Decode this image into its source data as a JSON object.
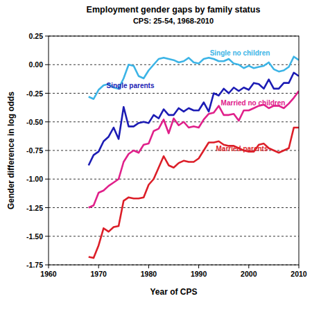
{
  "chart_data": {
    "type": "line",
    "title": "Employment gender gaps by family status",
    "subtitle": "CPS: 25-54, 1968-2010",
    "x_label": "Year of CPS",
    "y_label": "Gender difference in log odds",
    "x": [
      1968,
      1969,
      1970,
      1971,
      1972,
      1973,
      1974,
      1975,
      1976,
      1977,
      1978,
      1979,
      1980,
      1981,
      1982,
      1983,
      1984,
      1985,
      1986,
      1987,
      1988,
      1989,
      1990,
      1991,
      1992,
      1993,
      1994,
      1995,
      1996,
      1997,
      1998,
      1999,
      2000,
      2001,
      2002,
      2003,
      2004,
      2005,
      2006,
      2007,
      2008,
      2009,
      2010
    ],
    "series": [
      {
        "name": "Single no children",
        "color": "#3cb4e6",
        "values": [
          -0.28,
          -0.3,
          -0.22,
          -0.18,
          -0.17,
          -0.2,
          -0.21,
          -0.12,
          0.0,
          -0.01,
          -0.1,
          -0.12,
          -0.05,
          0.0,
          0.05,
          0.06,
          0.05,
          0.04,
          0.02,
          0.03,
          0.06,
          0.02,
          0.01,
          0.05,
          0.06,
          0.05,
          0.03,
          0.03,
          0.05,
          0.01,
          0.0,
          -0.03,
          -0.01,
          -0.03,
          -0.02,
          -0.01,
          0.02,
          -0.04,
          -0.06,
          -0.05,
          -0.02,
          0.07,
          0.04
        ]
      },
      {
        "name": "Single parents",
        "color": "#1c1cb4",
        "values": [
          -0.88,
          -0.79,
          -0.76,
          -0.67,
          -0.63,
          -0.55,
          -0.65,
          -0.37,
          -0.54,
          -0.54,
          -0.51,
          -0.5,
          -0.51,
          -0.44,
          -0.47,
          -0.39,
          -0.44,
          -0.44,
          -0.38,
          -0.41,
          -0.38,
          -0.4,
          -0.4,
          -0.33,
          -0.41,
          -0.25,
          -0.27,
          -0.21,
          -0.25,
          -0.2,
          -0.23,
          -0.2,
          -0.22,
          -0.16,
          -0.17,
          -0.21,
          -0.13,
          -0.21,
          -0.21,
          -0.16,
          -0.16,
          -0.07,
          -0.1
        ]
      },
      {
        "name": "Married no children",
        "color": "#e0208a",
        "values": [
          -1.25,
          -1.23,
          -1.12,
          -1.1,
          -1.06,
          -1.03,
          -1.0,
          -0.85,
          -0.78,
          -0.75,
          -0.77,
          -0.7,
          -0.69,
          -0.58,
          -0.56,
          -0.48,
          -0.6,
          -0.47,
          -0.53,
          -0.5,
          -0.55,
          -0.54,
          -0.55,
          -0.48,
          -0.43,
          -0.42,
          -0.36,
          -0.44,
          -0.44,
          -0.43,
          -0.49,
          -0.4,
          -0.4,
          -0.38,
          -0.36,
          -0.35,
          -0.38,
          -0.36,
          -0.36,
          -0.38,
          -0.34,
          -0.29,
          -0.23
        ]
      },
      {
        "name": "Married parents",
        "color": "#dc1e28",
        "values": [
          -1.68,
          -1.69,
          -1.58,
          -1.43,
          -1.46,
          -1.42,
          -1.41,
          -1.19,
          -1.16,
          -1.17,
          -1.17,
          -1.16,
          -1.05,
          -1.0,
          -0.9,
          -0.8,
          -0.88,
          -0.9,
          -0.86,
          -0.84,
          -0.85,
          -0.85,
          -0.82,
          -0.75,
          -0.68,
          -0.68,
          -0.67,
          -0.7,
          -0.71,
          -0.71,
          -0.73,
          -0.75,
          -0.76,
          -0.76,
          -0.7,
          -0.69,
          -0.73,
          -0.75,
          -0.77,
          -0.75,
          -0.73,
          -0.55,
          -0.55
        ]
      }
    ],
    "xlim": [
      1960,
      2010
    ],
    "xticks": [
      1960,
      1970,
      1980,
      1990,
      2000,
      2010
    ],
    "ylim": [
      -1.75,
      0.25
    ],
    "yticks": [
      {
        "value": 0.25,
        "label": "0.25"
      },
      {
        "value": 0,
        "label": "0.00"
      },
      {
        "value": -0.25,
        "label": "-0.25"
      },
      {
        "value": -0.5,
        "label": "-0.50"
      },
      {
        "value": -0.75,
        "label": "-0.75"
      },
      {
        "value": -1,
        "label": "-1.00"
      },
      {
        "value": -1.25,
        "label": "-1.25"
      },
      {
        "value": -1.5,
        "label": "-1.50"
      },
      {
        "value": -1.75,
        "label": "-1.75"
      }
    ],
    "grid": true
  }
}
